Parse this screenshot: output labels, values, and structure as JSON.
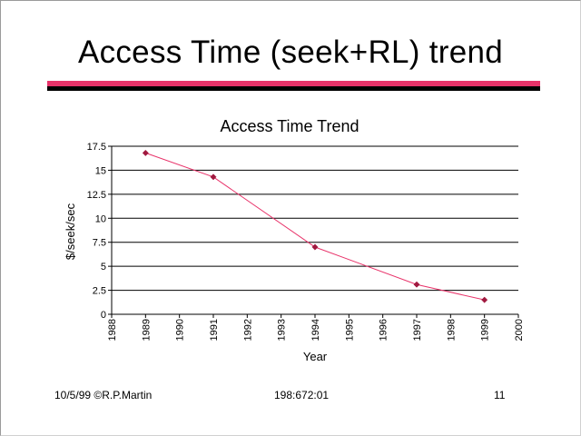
{
  "slide": {
    "title": "Access Time (seek+RL) trend"
  },
  "footer": {
    "left": "10/5/99 ©R.P.Martin",
    "center": "198:672:01",
    "right": "11"
  },
  "chart_data": {
    "type": "line",
    "title": "Access Time Trend",
    "xlabel": "Year",
    "ylabel": "$/seek/sec",
    "xlim": [
      1988,
      2000
    ],
    "ylim": [
      0,
      17.5
    ],
    "x_ticks": [
      "1988",
      "1989",
      "1990",
      "1991",
      "1992",
      "1993",
      "1994",
      "1995",
      "1996",
      "1997",
      "1998",
      "1999",
      "2000"
    ],
    "y_ticks": [
      "0",
      "2.5",
      "5",
      "7.5",
      "10",
      "12.5",
      "15",
      "17.5"
    ],
    "grid": "horizontal",
    "legend": "none",
    "series": [
      {
        "color": "#e8336a",
        "marker_color": "#a0193f",
        "x": [
          1989,
          1991,
          1994,
          1997,
          1999
        ],
        "y": [
          16.8,
          14.3,
          7.0,
          3.1,
          1.5
        ]
      }
    ]
  }
}
